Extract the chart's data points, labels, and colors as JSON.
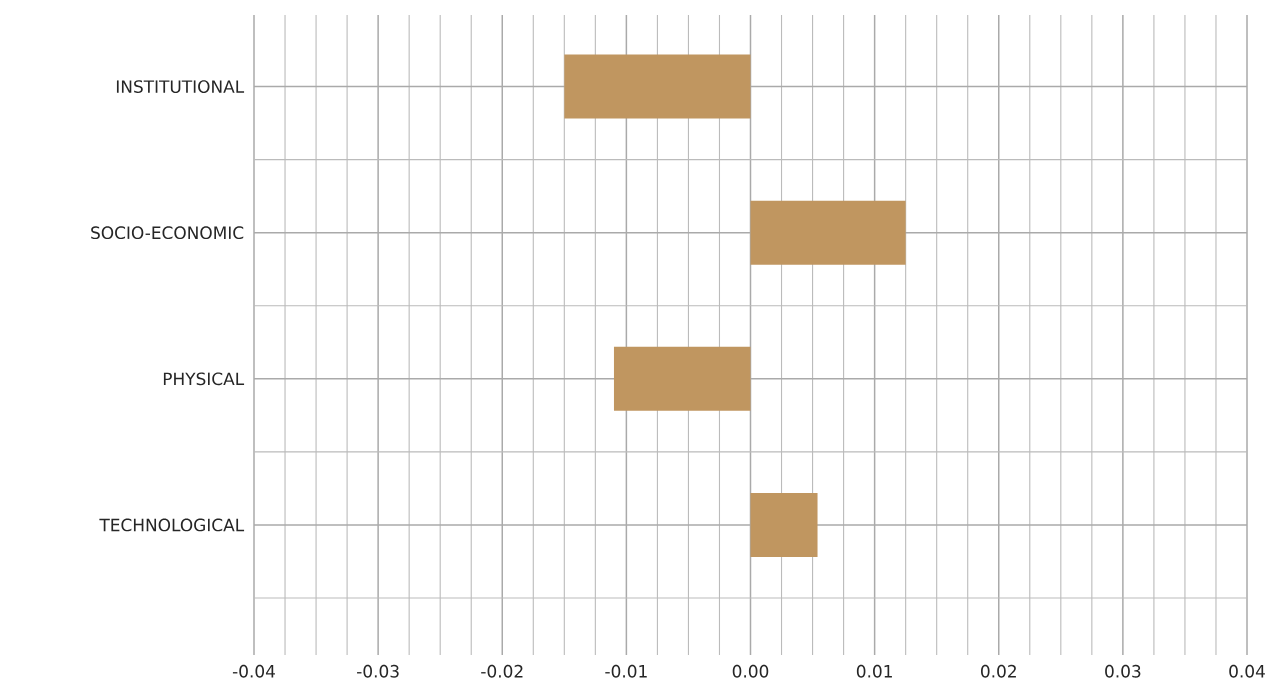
{
  "chart_data": {
    "type": "bar",
    "orientation": "horizontal",
    "categories": [
      "INSTITUTIONAL",
      "SOCIO-ECONOMIC",
      "PHYSICAL",
      "TECHNOLOGICAL"
    ],
    "values": [
      -0.015,
      0.0125,
      -0.011,
      0.0054
    ],
    "color": "#c09660",
    "xlim": [
      -0.04,
      0.04
    ],
    "xticks": [
      -0.04,
      -0.03,
      -0.02,
      -0.01,
      {
        "value": 0,
        "label": "0.00"
      },
      0.01,
      0.02,
      0.03,
      0.04
    ],
    "grid": true
  }
}
